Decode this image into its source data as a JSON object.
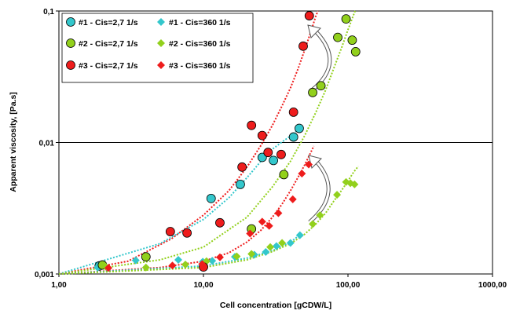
{
  "chart_data": {
    "type": "scatter",
    "title": "",
    "xlabel": "Cell concentration [gCDW/L]",
    "ylabel": "Apparent viscosity, [Pa.s]",
    "x_scale": "log",
    "y_scale": "log",
    "xlim": [
      1,
      1000
    ],
    "ylim": [
      0.001,
      0.1
    ],
    "x_ticks": [
      "1,00",
      "10,00",
      "100,00",
      "1000,00"
    ],
    "y_ticks": [
      "0,001",
      "0,01",
      "0,1"
    ],
    "grid": "horizontal line at 0,01",
    "legend_position": "top-left",
    "colors": {
      "cyan": "#33c7cc",
      "green": "#92d01c",
      "red": "#ee1c1c",
      "marker_edge": "#000000"
    },
    "series": [
      {
        "name": "#1 - Cis=2,7 1/s",
        "marker": "circle",
        "color": "#33c7cc",
        "points": [
          [
            1.9,
            0.00115
          ],
          [
            11.3,
            0.00375
          ],
          [
            18.0,
            0.0048
          ],
          [
            25.5,
            0.0077
          ],
          [
            30.5,
            0.0073
          ],
          [
            42.0,
            0.011
          ],
          [
            46.0,
            0.0128
          ]
        ]
      },
      {
        "name": "#1 - Cis=360 1/s",
        "marker": "diamond",
        "color": "#33c7cc",
        "points": [
          [
            1.85,
            0.00112
          ],
          [
            3.4,
            0.00127
          ],
          [
            6.7,
            0.00128
          ],
          [
            9.9,
            0.00124
          ],
          [
            11.5,
            0.00126
          ],
          [
            16.5,
            0.00135
          ],
          [
            22.5,
            0.0014
          ],
          [
            27.0,
            0.00147
          ],
          [
            32.0,
            0.00163
          ],
          [
            40.0,
            0.00172
          ],
          [
            46.5,
            0.00197
          ]
        ]
      },
      {
        "name": "#2 - Cis=2,7 1/s",
        "marker": "circle",
        "color": "#92d01c",
        "points": [
          [
            2.0,
            0.00117
          ],
          [
            4.0,
            0.00135
          ],
          [
            21.5,
            0.0022
          ],
          [
            36.0,
            0.0057
          ],
          [
            57.0,
            0.024
          ],
          [
            65.0,
            0.027
          ],
          [
            85.0,
            0.063
          ],
          [
            97.0,
            0.087
          ],
          [
            107.0,
            0.06
          ],
          [
            113.0,
            0.049
          ]
        ]
      },
      {
        "name": "#2 - Cis=360 1/s",
        "marker": "diamond",
        "color": "#92d01c",
        "points": [
          [
            2.1,
            0.00114
          ],
          [
            4.0,
            0.00112
          ],
          [
            7.5,
            0.00118
          ],
          [
            10.5,
            0.00125
          ],
          [
            17.0,
            0.00136
          ],
          [
            21.5,
            0.00142
          ],
          [
            29.0,
            0.0016
          ],
          [
            35.0,
            0.00172
          ],
          [
            57.0,
            0.0024
          ],
          [
            64.0,
            0.0028
          ],
          [
            84.0,
            0.004
          ],
          [
            97.0,
            0.005
          ],
          [
            104.0,
            0.0049
          ],
          [
            111.0,
            0.0048
          ]
        ]
      },
      {
        "name": "#3 - Cis=2,7 1/s",
        "marker": "circle",
        "color": "#ee1c1c",
        "points": [
          [
            5.9,
            0.0021
          ],
          [
            7.7,
            0.00205
          ],
          [
            10.0,
            0.00113
          ],
          [
            13.0,
            0.00245
          ],
          [
            18.5,
            0.0065
          ],
          [
            21.5,
            0.0135
          ],
          [
            25.5,
            0.0113
          ],
          [
            28.0,
            0.0084
          ],
          [
            34.5,
            0.0081
          ],
          [
            42.0,
            0.017
          ],
          [
            49.0,
            0.054
          ],
          [
            54.0,
            0.092
          ]
        ]
      },
      {
        "name": "#3 - Cis=360 1/s",
        "marker": "diamond",
        "color": "#ee1c1c",
        "points": [
          [
            2.2,
            0.00111
          ],
          [
            6.1,
            0.00116
          ],
          [
            9.8,
            0.00119
          ],
          [
            13.0,
            0.00134
          ],
          [
            21.0,
            0.00203
          ],
          [
            25.5,
            0.0025
          ],
          [
            28.5,
            0.00232
          ],
          [
            33.0,
            0.0029
          ],
          [
            41.5,
            0.0037
          ],
          [
            48.0,
            0.0058
          ],
          [
            53.5,
            0.0068
          ]
        ]
      }
    ],
    "trendlines": [
      {
        "color": "#ee1c1c",
        "points": [
          [
            1,
            0.001
          ],
          [
            3,
            0.00125
          ],
          [
            6,
            0.00185
          ],
          [
            10,
            0.0028
          ],
          [
            15,
            0.0043
          ],
          [
            20,
            0.0065
          ],
          [
            25,
            0.0095
          ],
          [
            30,
            0.0135
          ],
          [
            35,
            0.019
          ],
          [
            40,
            0.026
          ],
          [
            45,
            0.036
          ],
          [
            50,
            0.05
          ],
          [
            55,
            0.068
          ],
          [
            60,
            0.092
          ],
          [
            62,
            0.1
          ]
        ]
      },
      {
        "color": "#33c7cc",
        "points": [
          [
            1,
            0.001
          ],
          [
            5,
            0.0017
          ],
          [
            10,
            0.0026
          ],
          [
            15,
            0.0038
          ],
          [
            20,
            0.0054
          ],
          [
            25,
            0.0072
          ],
          [
            30,
            0.0089
          ],
          [
            35,
            0.0101
          ],
          [
            40,
            0.0112
          ],
          [
            46,
            0.0128
          ]
        ]
      },
      {
        "color": "#92d01c",
        "points": [
          [
            1,
            0.001
          ],
          [
            5,
            0.00128
          ],
          [
            10,
            0.0016
          ],
          [
            20,
            0.0027
          ],
          [
            30,
            0.0046
          ],
          [
            40,
            0.0072
          ],
          [
            50,
            0.0112
          ],
          [
            60,
            0.017
          ],
          [
            70,
            0.025
          ],
          [
            80,
            0.037
          ],
          [
            90,
            0.052
          ],
          [
            100,
            0.072
          ],
          [
            110,
            0.095
          ],
          [
            112,
            0.1
          ]
        ]
      },
      {
        "color": "#ee1c1c",
        "points": [
          [
            1,
            0.001
          ],
          [
            5,
            0.00112
          ],
          [
            10,
            0.00125
          ],
          [
            15,
            0.00145
          ],
          [
            20,
            0.00175
          ],
          [
            25,
            0.00215
          ],
          [
            30,
            0.0027
          ],
          [
            35,
            0.0034
          ],
          [
            40,
            0.0043
          ],
          [
            45,
            0.0054
          ],
          [
            50,
            0.0067
          ],
          [
            55,
            0.0083
          ],
          [
            58,
            0.0094
          ]
        ]
      },
      {
        "color": "#33c7cc",
        "points": [
          [
            1,
            0.001
          ],
          [
            10,
            0.00115
          ],
          [
            20,
            0.00132
          ],
          [
            30,
            0.0015
          ],
          [
            40,
            0.00175
          ],
          [
            47,
            0.002
          ]
        ]
      },
      {
        "color": "#92d01c",
        "points": [
          [
            1,
            0.001
          ],
          [
            10,
            0.00112
          ],
          [
            20,
            0.00128
          ],
          [
            30,
            0.00148
          ],
          [
            40,
            0.0017
          ],
          [
            50,
            0.002
          ],
          [
            60,
            0.0024
          ],
          [
            70,
            0.0029
          ],
          [
            80,
            0.0036
          ],
          [
            90,
            0.0043
          ],
          [
            100,
            0.0051
          ],
          [
            110,
            0.006
          ],
          [
            118,
            0.0066
          ]
        ]
      }
    ]
  }
}
